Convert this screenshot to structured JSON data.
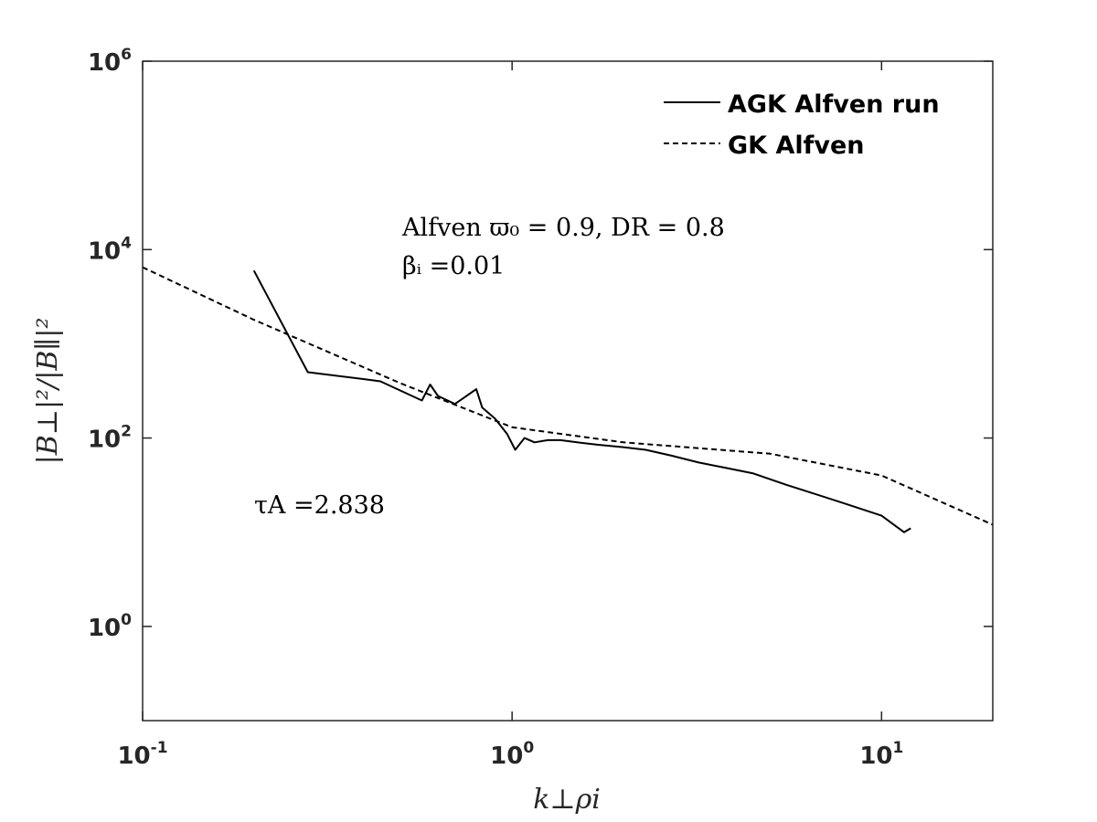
{
  "chart_data": {
    "type": "line",
    "xscale": "log",
    "yscale": "log",
    "xlim": [
      0.1,
      20
    ],
    "ylim": [
      0.1,
      1000000
    ],
    "xticks": [
      {
        "value": 0.1,
        "base": "10",
        "exp": "-1"
      },
      {
        "value": 1,
        "base": "10",
        "exp": "0"
      },
      {
        "value": 10,
        "base": "10",
        "exp": "1"
      }
    ],
    "yticks": [
      {
        "value": 1,
        "base": "10",
        "exp": "0"
      },
      {
        "value": 100,
        "base": "10",
        "exp": "2"
      },
      {
        "value": 10000,
        "base": "10",
        "exp": "4"
      },
      {
        "value": 1000000,
        "base": "10",
        "exp": "6"
      }
    ],
    "xlabel": "k⊥ρi",
    "ylabel": "|B⊥|²/|B∥|²",
    "legend": {
      "position": "top-right",
      "entries": [
        {
          "label": "AGK Alfven run",
          "style": "solid"
        },
        {
          "label": "GK Alfven",
          "style": "dashed"
        }
      ]
    },
    "annotations": {
      "line1": "Alfven ϖ₀ = 0.9, DR = 0.8",
      "line2": "βᵢ =0.01",
      "tau": "τA =2.838"
    },
    "series": [
      {
        "name": "AGK Alfven run",
        "style": "solid",
        "x": [
          0.2,
          0.28,
          0.4,
          0.44,
          0.57,
          0.6,
          0.63,
          0.7,
          0.8,
          0.83,
          0.9,
          0.97,
          1.02,
          1.08,
          1.15,
          1.25,
          1.35,
          1.5,
          1.7,
          2.0,
          2.3,
          2.7,
          3.2,
          3.8,
          4.5,
          5.5,
          6.5,
          8.0,
          10.0,
          11.5,
          12.0
        ],
        "y": [
          6000,
          500,
          420,
          400,
          250,
          370,
          280,
          230,
          330,
          210,
          160,
          110,
          75,
          100,
          90,
          95,
          95,
          90,
          85,
          80,
          75,
          65,
          55,
          48,
          42,
          32,
          26,
          20,
          15,
          10,
          11
        ]
      },
      {
        "name": "GK Alfven",
        "style": "dashed",
        "x": [
          0.1,
          0.2,
          0.5,
          1.0,
          2.0,
          5.0,
          10.0,
          20.0
        ],
        "y": [
          6500,
          1800,
          380,
          130,
          90,
          68,
          40,
          12
        ]
      }
    ]
  }
}
